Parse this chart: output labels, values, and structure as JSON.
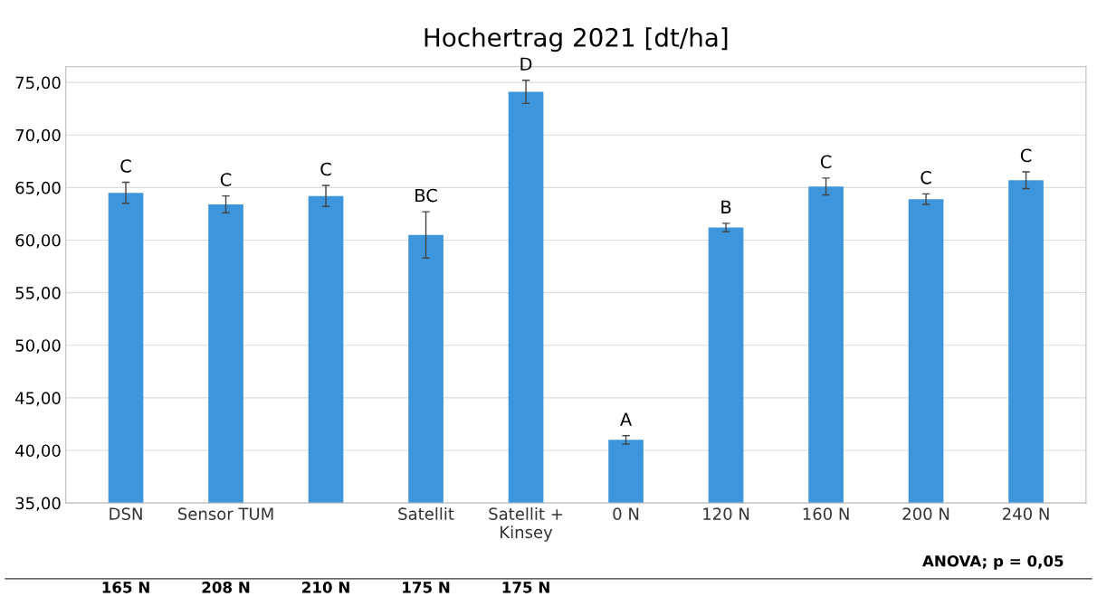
{
  "chart_data": {
    "type": "bar",
    "title": "Hochertrag 2021 [dt/ha]",
    "categories": [
      "DSN",
      "Sensor TUM",
      null,
      "Satellit",
      "Satellit +\nKinsey",
      "0 N",
      "120 N",
      "160 N",
      "200 N",
      "240 N"
    ],
    "values": [
      64.5,
      63.4,
      64.2,
      60.5,
      74.1,
      41.0,
      61.2,
      65.1,
      63.9,
      65.7
    ],
    "errors": [
      1.0,
      0.8,
      1.0,
      2.2,
      1.1,
      0.4,
      0.4,
      0.8,
      0.5,
      0.8
    ],
    "value_labels": [
      "C",
      "C",
      "C",
      "BC",
      "D",
      "A",
      "B",
      "C",
      "C",
      "C"
    ],
    "color": "#3d96dc",
    "ylim": [
      35,
      76.5
    ],
    "yticks": [
      {
        "value": 35,
        "label": "35,00"
      },
      {
        "value": 40,
        "label": "40,00"
      },
      {
        "value": 45,
        "label": "45,00"
      },
      {
        "value": 50,
        "label": "50,00"
      },
      {
        "value": 55,
        "label": "55,00"
      },
      {
        "value": 60,
        "label": "60,00"
      },
      {
        "value": 65,
        "label": "65,00"
      },
      {
        "value": 70,
        "label": "70,00"
      },
      {
        "value": 75,
        "label": "75,00"
      }
    ],
    "grid": "y",
    "annotations": [
      "165 N",
      "208 N",
      "210 N",
      "175 N",
      "175 N",
      "ANOVA; p = 0,05"
    ]
  }
}
